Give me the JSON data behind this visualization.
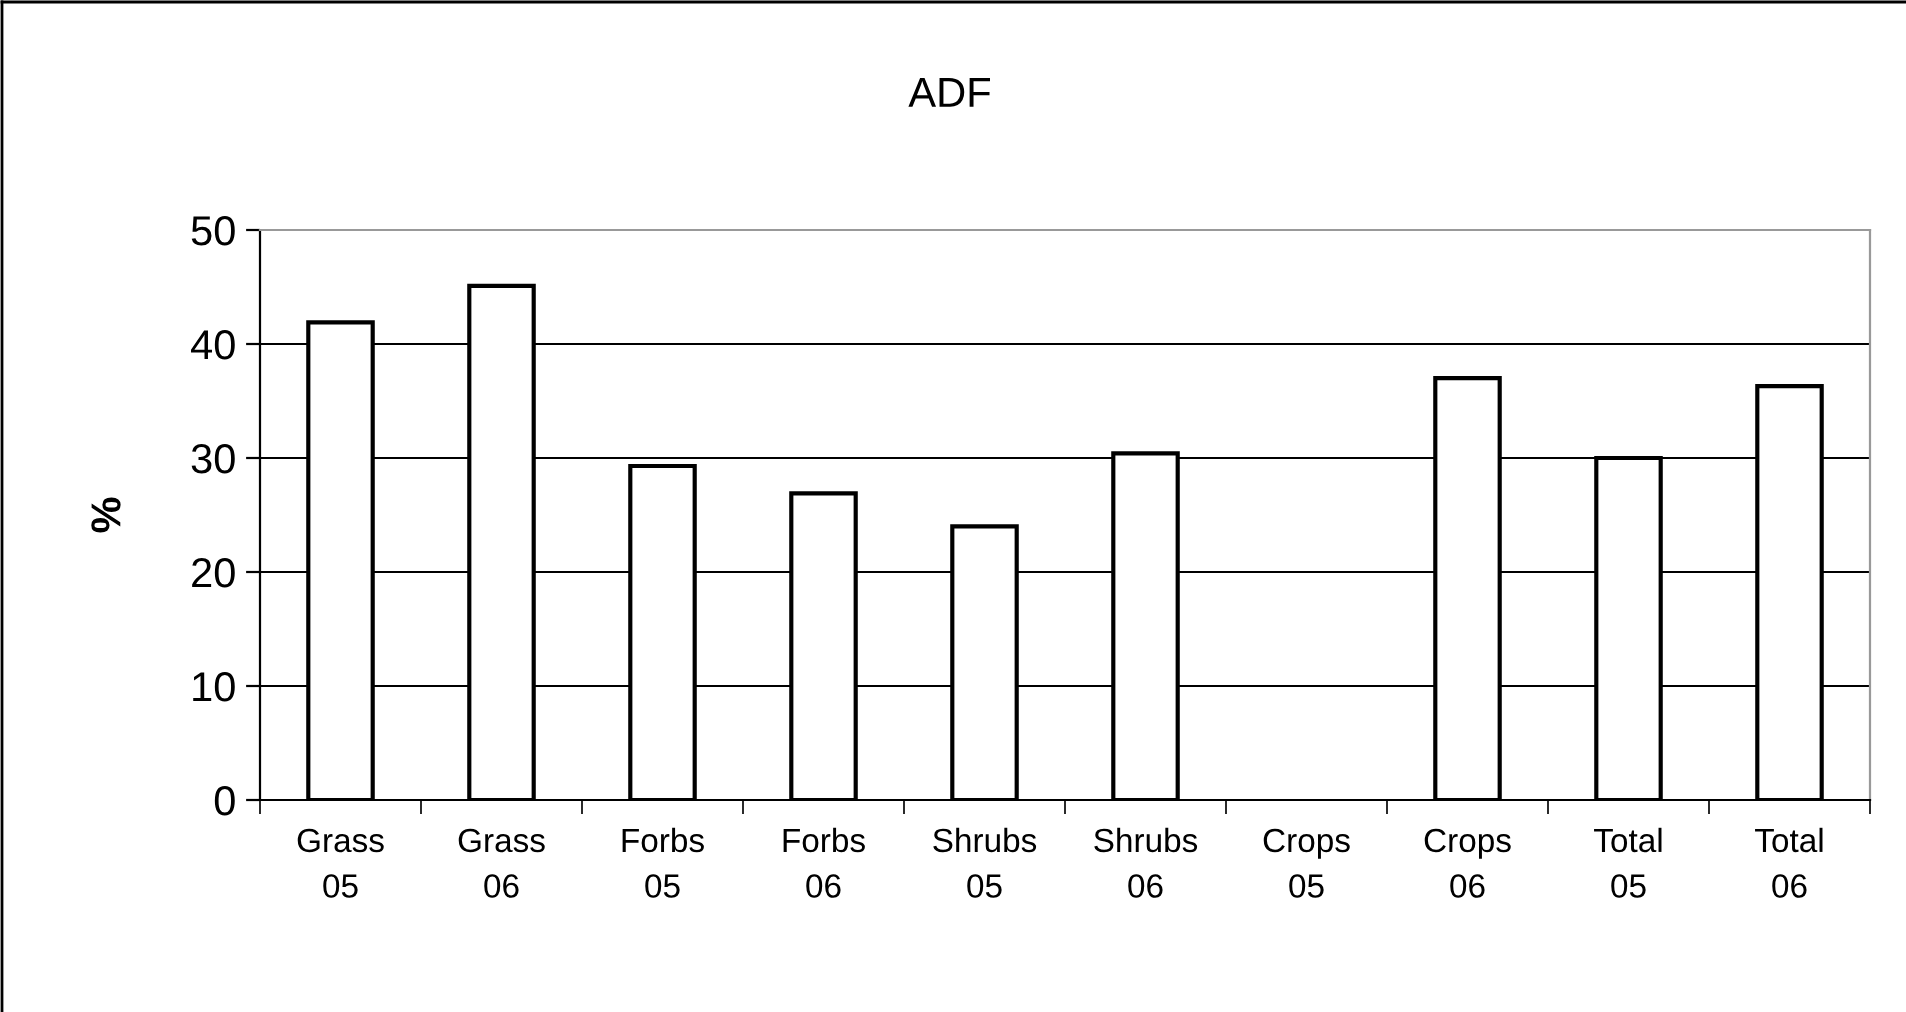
{
  "chart_data": {
    "type": "bar",
    "title": "ADF",
    "ylabel": "%",
    "categories": [
      "Grass\n05",
      "Grass\n06",
      "Forbs\n05",
      "Forbs\n06",
      "Shrubs\n05",
      "Shrubs\n06",
      "Crops\n05",
      "Crops\n06",
      "Total\n05",
      "Total\n06"
    ],
    "values": [
      41.9,
      45.1,
      29.3,
      26.9,
      24.0,
      30.4,
      null,
      37.0,
      30.0,
      36.3
    ],
    "color": "#ffffff",
    "ylim": [
      0,
      50
    ],
    "yticks": [
      0,
      10,
      20,
      30,
      40,
      50
    ],
    "grid": "y"
  }
}
